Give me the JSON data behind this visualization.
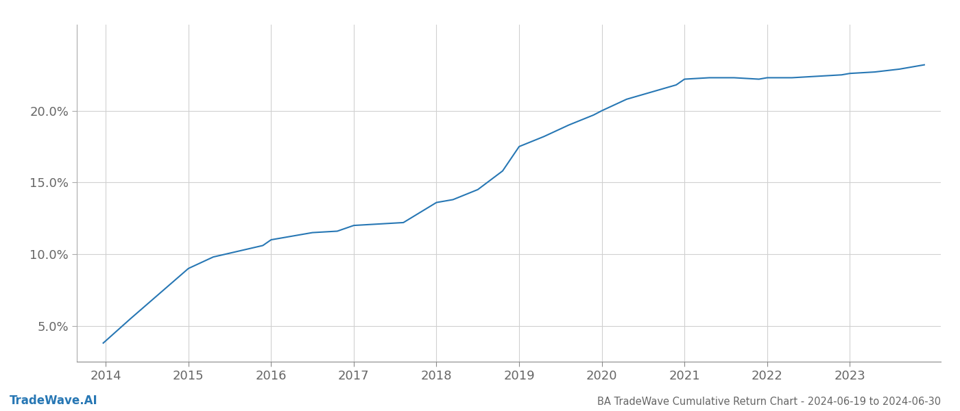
{
  "title": "BA TradeWave Cumulative Return Chart - 2024-06-19 to 2024-06-30",
  "watermark": "TradeWave.AI",
  "line_color": "#2777b4",
  "background_color": "#ffffff",
  "grid_color": "#d0d0d0",
  "x_values": [
    2013.97,
    2014.3,
    2014.7,
    2015.0,
    2015.3,
    2015.6,
    2015.9,
    2016.0,
    2016.3,
    2016.5,
    2016.8,
    2017.0,
    2017.3,
    2017.6,
    2018.0,
    2018.2,
    2018.5,
    2018.8,
    2019.0,
    2019.3,
    2019.6,
    2019.9,
    2020.0,
    2020.3,
    2020.6,
    2020.9,
    2021.0,
    2021.3,
    2021.6,
    2021.9,
    2022.0,
    2022.3,
    2022.6,
    2022.9,
    2023.0,
    2023.3,
    2023.6,
    2023.9
  ],
  "y_values": [
    3.8,
    5.5,
    7.5,
    9.0,
    9.8,
    10.2,
    10.6,
    11.0,
    11.3,
    11.5,
    11.6,
    12.0,
    12.1,
    12.2,
    13.6,
    13.8,
    14.5,
    15.8,
    17.5,
    18.2,
    19.0,
    19.7,
    20.0,
    20.8,
    21.3,
    21.8,
    22.2,
    22.3,
    22.3,
    22.2,
    22.3,
    22.3,
    22.4,
    22.5,
    22.6,
    22.7,
    22.9,
    23.2
  ],
  "xlim": [
    2013.65,
    2024.1
  ],
  "ylim": [
    2.5,
    26.0
  ],
  "yticks": [
    5.0,
    10.0,
    15.0,
    20.0
  ],
  "xticks": [
    2014,
    2015,
    2016,
    2017,
    2018,
    2019,
    2020,
    2021,
    2022,
    2023
  ],
  "line_width": 1.5,
  "title_fontsize": 10.5,
  "tick_fontsize": 13,
  "watermark_fontsize": 12
}
